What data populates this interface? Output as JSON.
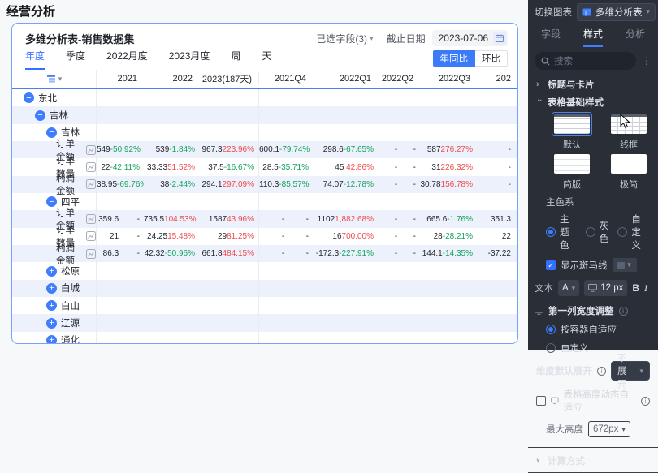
{
  "page_title": "经营分析",
  "colors": {
    "accent": "#3370ff",
    "up_red": "#ef4b4b",
    "down_green": "#12a35f",
    "zebra": "#edf1fb",
    "panel_bg": "#2a2e37"
  },
  "card": {
    "title": "多维分析表-销售数据集",
    "fields_selected": "已选字段(3)",
    "deadline_label": "截止日期",
    "deadline_value": "2023-07-06",
    "tabs": [
      {
        "label": "年度",
        "active": true
      },
      {
        "label": "季度",
        "active": false
      },
      {
        "label": "2022月度",
        "active": false
      },
      {
        "label": "2023月度",
        "active": false
      },
      {
        "label": "周",
        "active": false
      },
      {
        "label": "天",
        "active": false
      }
    ],
    "compare_buttons": [
      {
        "label": "年同比",
        "active": true
      },
      {
        "label": "环比",
        "active": false
      }
    ]
  },
  "table": {
    "columns": [
      "2021",
      "2022",
      "2023(187天)",
      "2021Q4",
      "2022Q1",
      "2022Q2",
      "2022Q3",
      "202"
    ],
    "rows": [
      {
        "type": "group",
        "level": 1,
        "expanded": true,
        "label": "东北"
      },
      {
        "type": "group",
        "level": 2,
        "expanded": true,
        "label": "吉林"
      },
      {
        "type": "group",
        "level": 3,
        "expanded": true,
        "label": "吉林"
      },
      {
        "type": "metric",
        "label": "订单金额",
        "cells": [
          {
            "v": "549",
            "p": "-50.92%",
            "t": "down"
          },
          {
            "v": "539",
            "p": "-1.84%",
            "t": "down"
          },
          {
            "v": "967.3",
            "p": "223.96%",
            "t": "up"
          },
          {
            "v": "600.1",
            "p": "-79.74%",
            "t": "down"
          },
          {
            "v": "298.6",
            "p": "-67.65%",
            "t": "down"
          },
          {
            "v": "-",
            "p": "-",
            "t": "flat"
          },
          {
            "v": "587",
            "p": "276.27%",
            "t": "up"
          },
          {
            "v": "-",
            "p": "",
            "t": "flat"
          }
        ]
      },
      {
        "type": "metric",
        "label": "订单数量",
        "cells": [
          {
            "v": "22",
            "p": "-42.11%",
            "t": "down"
          },
          {
            "v": "33.33",
            "p": "51.52%",
            "t": "up"
          },
          {
            "v": "37.5",
            "p": "-16.67%",
            "t": "down"
          },
          {
            "v": "28.5",
            "p": "-35.71%",
            "t": "down"
          },
          {
            "v": "45",
            "p": "42.86%",
            "t": "up"
          },
          {
            "v": "-",
            "p": "-",
            "t": "flat"
          },
          {
            "v": "31",
            "p": "226.32%",
            "t": "up"
          },
          {
            "v": "-",
            "p": "",
            "t": "flat"
          }
        ]
      },
      {
        "type": "metric",
        "label": "利润金额",
        "cells": [
          {
            "v": "38.95",
            "p": "-69.76%",
            "t": "down"
          },
          {
            "v": "38",
            "p": "-2.44%",
            "t": "down"
          },
          {
            "v": "294.1",
            "p": "297.09%",
            "t": "up"
          },
          {
            "v": "110.3",
            "p": "-85.57%",
            "t": "down"
          },
          {
            "v": "74.07",
            "p": "-12.78%",
            "t": "down"
          },
          {
            "v": "-",
            "p": "-",
            "t": "flat"
          },
          {
            "v": "30.78",
            "p": "156.78%",
            "t": "up"
          },
          {
            "v": "-",
            "p": "",
            "t": "flat"
          }
        ]
      },
      {
        "type": "group",
        "level": 3,
        "expanded": true,
        "label": "四平"
      },
      {
        "type": "metric",
        "label": "订单金额",
        "cells": [
          {
            "v": "359.6",
            "p": "-",
            "t": "flat"
          },
          {
            "v": "735.5",
            "p": "104.53%",
            "t": "up"
          },
          {
            "v": "1587",
            "p": "43.96%",
            "t": "up"
          },
          {
            "v": "-",
            "p": "-",
            "t": "flat"
          },
          {
            "v": "1102",
            "p": "1,882.68%",
            "t": "up"
          },
          {
            "v": "-",
            "p": "-",
            "t": "flat"
          },
          {
            "v": "665.6",
            "p": "-1.76%",
            "t": "down"
          },
          {
            "v": "351.3",
            "p": "",
            "t": "flat"
          }
        ]
      },
      {
        "type": "metric",
        "label": "订单数量",
        "cells": [
          {
            "v": "21",
            "p": "-",
            "t": "flat"
          },
          {
            "v": "24.25",
            "p": "15.48%",
            "t": "up"
          },
          {
            "v": "29",
            "p": "81.25%",
            "t": "up"
          },
          {
            "v": "-",
            "p": "-",
            "t": "flat"
          },
          {
            "v": "16",
            "p": "700.00%",
            "t": "up"
          },
          {
            "v": "-",
            "p": "-",
            "t": "flat"
          },
          {
            "v": "28",
            "p": "-28.21%",
            "t": "down"
          },
          {
            "v": "22",
            "p": "",
            "t": "flat"
          }
        ]
      },
      {
        "type": "metric",
        "label": "利润金额",
        "cells": [
          {
            "v": "86.3",
            "p": "-",
            "t": "flat"
          },
          {
            "v": "42.32",
            "p": "-50.96%",
            "t": "down"
          },
          {
            "v": "661.8",
            "p": "484.15%",
            "t": "up"
          },
          {
            "v": "-",
            "p": "-",
            "t": "flat"
          },
          {
            "v": "-172.3",
            "p": "-227.91%",
            "t": "down"
          },
          {
            "v": "-",
            "p": "-",
            "t": "flat"
          },
          {
            "v": "144.1",
            "p": "-14.35%",
            "t": "down"
          },
          {
            "v": "-37.22",
            "p": "",
            "t": "flat"
          }
        ]
      },
      {
        "type": "group",
        "level": 3,
        "expanded": false,
        "label": "松原"
      },
      {
        "type": "group",
        "level": 3,
        "expanded": false,
        "label": "白城"
      },
      {
        "type": "group",
        "level": 3,
        "expanded": false,
        "label": "白山"
      },
      {
        "type": "group",
        "level": 3,
        "expanded": false,
        "label": "辽源"
      },
      {
        "type": "group",
        "level": 3,
        "expanded": false,
        "label": "通化"
      }
    ]
  },
  "panel": {
    "switch_label": "切换图表",
    "chart_type": "多维分析表",
    "tabs": [
      {
        "label": "字段",
        "active": false
      },
      {
        "label": "样式",
        "active": true
      },
      {
        "label": "分析",
        "active": false
      }
    ],
    "search_placeholder": "搜索",
    "section_title_card": "标题与卡片",
    "section_table_style": "表格基础样式",
    "style_options": [
      {
        "label": "默认",
        "selected": true,
        "kind": "t-default"
      },
      {
        "label": "线框",
        "selected": false,
        "kind": "t-wire"
      },
      {
        "label": "简版",
        "selected": false,
        "kind": "t-simple"
      },
      {
        "label": "极简",
        "selected": false,
        "kind": "t-minimal"
      }
    ],
    "primary_color_label": "主色系",
    "color_options": [
      {
        "label": "主题色",
        "selected": true
      },
      {
        "label": "灰色",
        "selected": false
      },
      {
        "label": "自定义",
        "selected": false
      }
    ],
    "zebra_label": "显示斑马线",
    "text_label": "文本",
    "font_dropdown": "A",
    "font_size": "12 px",
    "bold_label": "B",
    "italic_label": "I",
    "first_col_label": "第一列宽度调整",
    "width_options": [
      {
        "label": "按容器自适应",
        "selected": true
      },
      {
        "label": "自定义",
        "selected": false
      }
    ],
    "dim_expand_label": "维度默认展开",
    "dim_expand_value": "不展开",
    "height_auto_label": "表格高度动态自适应",
    "max_height_label": "最大高度",
    "max_height_value": "672px",
    "section_calc": "计算方式"
  }
}
